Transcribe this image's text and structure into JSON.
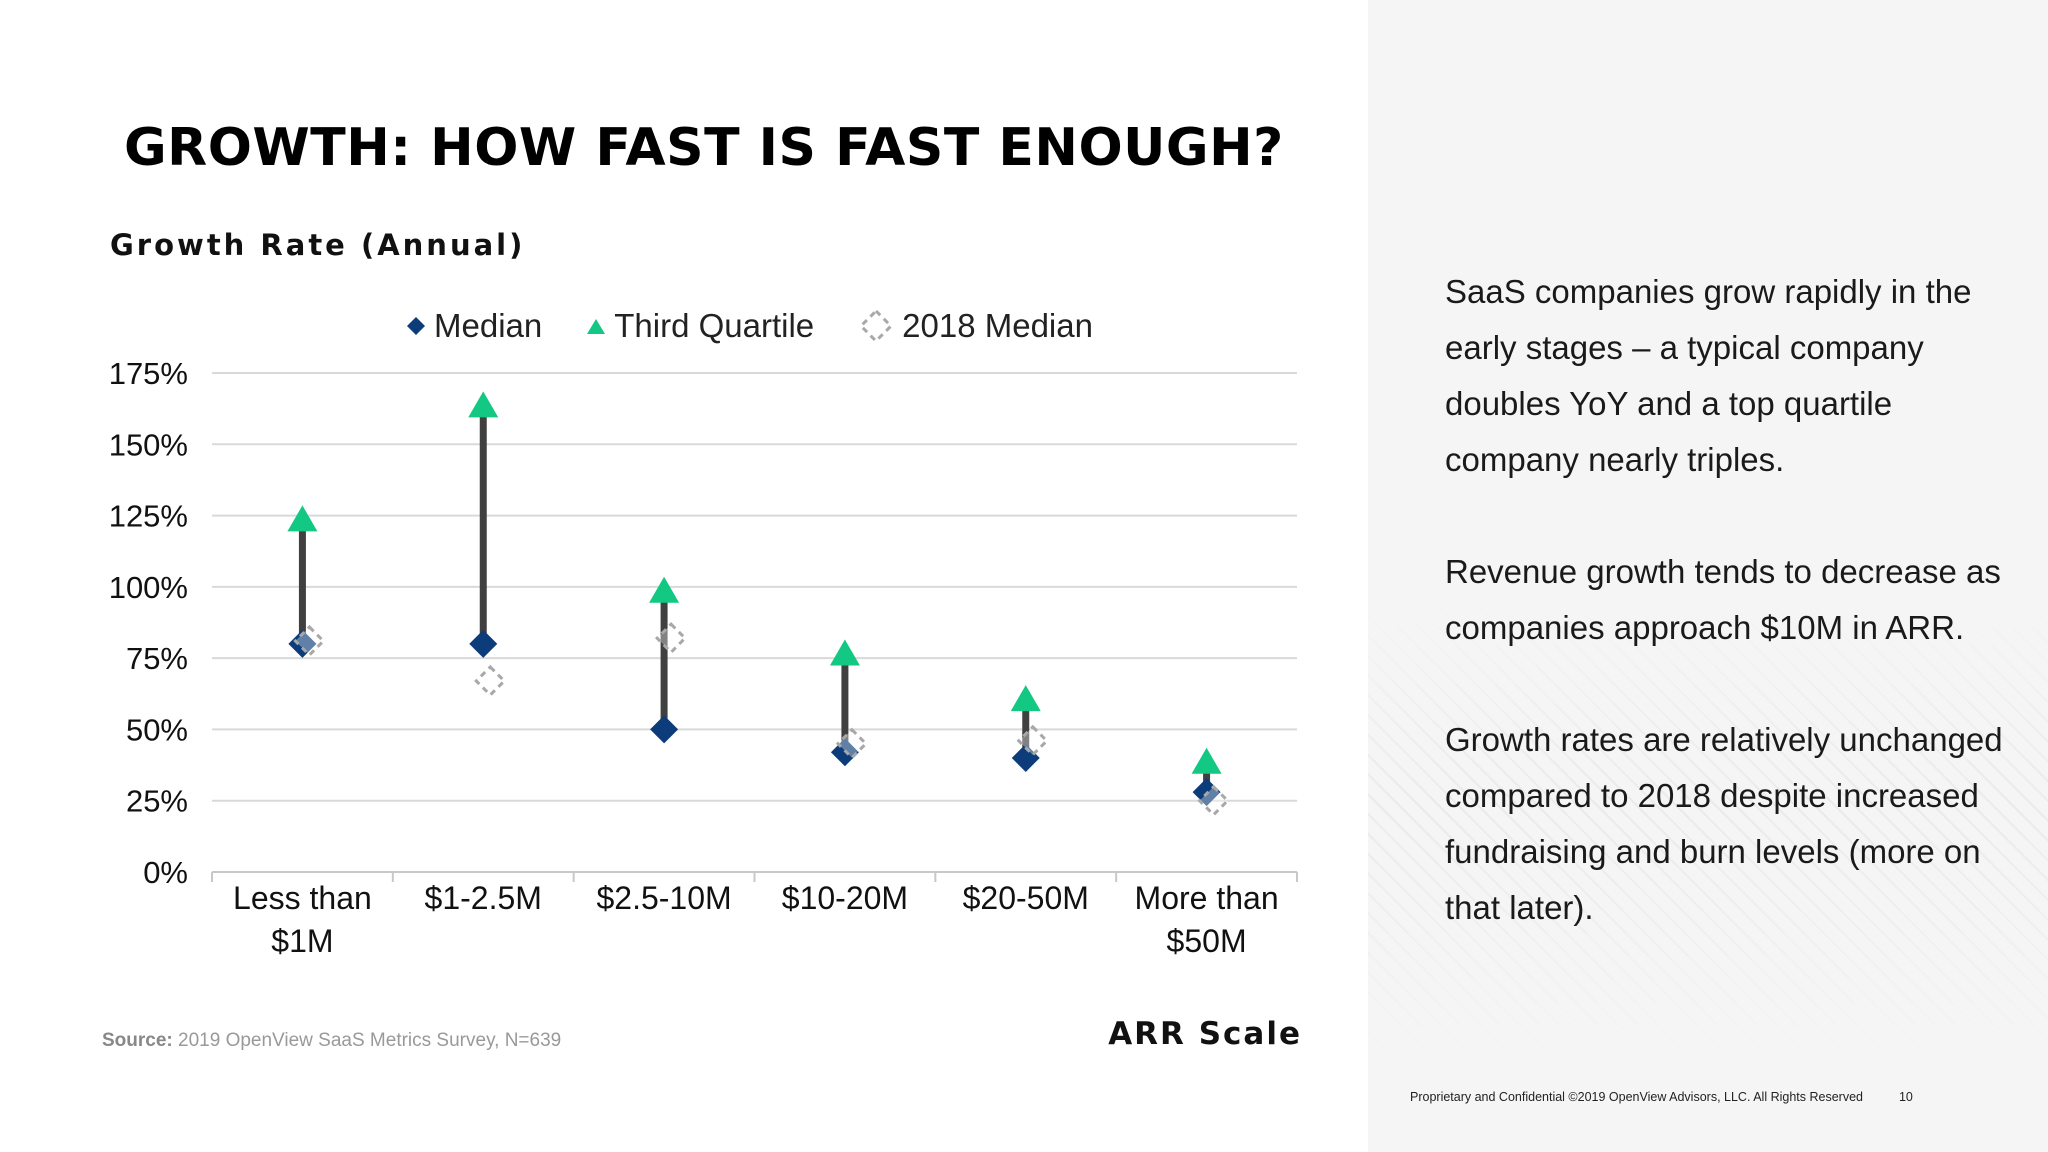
{
  "slide": {
    "title": "GROWTH: HOW FAST IS FAST ENOUGH?",
    "notes": [
      "SaaS companies grow rapidly in the early stages – a typical company doubles YoY and a top quartile company nearly triples.",
      "Revenue growth tends to decrease as companies approach $10M in ARR.",
      "Growth rates are relatively unchanged compared to 2018 despite increased fundraising and burn levels (more on that later)."
    ],
    "source_label": "Source:",
    "source_text": "2019 OpenView SaaS Metrics Survey, N=639",
    "footer_text": "Proprietary and Confidential ©2019 OpenView Advisors, LLC. All Rights Reserved",
    "page_number": "10"
  },
  "colors": {
    "median": "#0d3c7a",
    "third_quartile": "#13c882",
    "median_2018": "#a8a8a8",
    "connector": "#404040",
    "gridline": "#d9d9d9"
  },
  "chart_data": {
    "type": "scatter",
    "title": "Growth Rate (Annual)",
    "xlabel": "ARR Scale",
    "ylabel": "",
    "categories": [
      [
        "Less than",
        "$1M"
      ],
      [
        "$1-2.5M"
      ],
      [
        "$2.5-10M"
      ],
      [
        "$10-20M"
      ],
      [
        "$20-50M"
      ],
      [
        "More than",
        "$50M"
      ]
    ],
    "series": [
      {
        "name": "Median",
        "marker": "diamond",
        "values": [
          80,
          80,
          50,
          42,
          40,
          28
        ]
      },
      {
        "name": "Third Quartile",
        "marker": "triangle",
        "values": [
          124,
          164,
          99,
          77,
          61,
          39
        ]
      },
      {
        "name": "2018 Median",
        "marker": "dashed-diamond",
        "values": [
          81,
          67,
          82,
          45,
          46,
          25
        ]
      }
    ],
    "ylim": [
      0,
      175
    ],
    "yticks": [
      0,
      25,
      50,
      75,
      100,
      125,
      150,
      175
    ],
    "ytick_labels": [
      "0%",
      "25%",
      "50%",
      "75%",
      "100%",
      "125%",
      "150%",
      "175%"
    ],
    "grid": true,
    "legend_position": "top"
  }
}
